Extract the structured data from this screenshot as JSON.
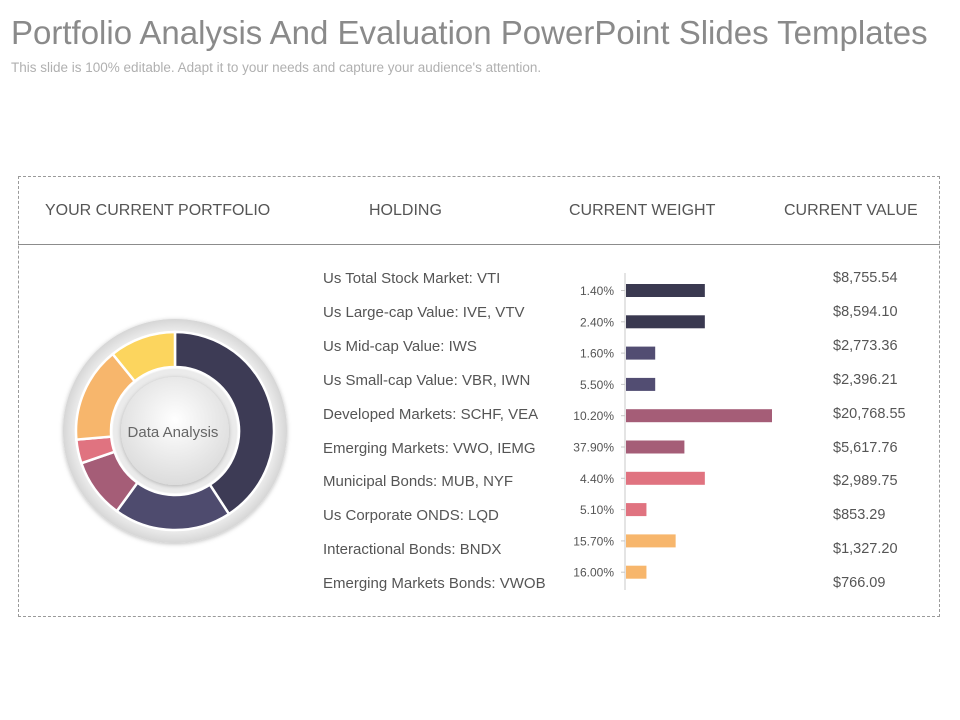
{
  "title": "Portfolio Analysis And Evaluation PowerPoint Slides Templates",
  "subtitle": "This slide is 100% editable. Adapt it to your needs and capture your audience's attention.",
  "table": {
    "headers": {
      "portfolio": "YOUR CURRENT PORTFOLIO",
      "holding": "HOLDING",
      "weight": "CURRENT WEIGHT",
      "value": "CURRENT VALUE"
    }
  },
  "donut": {
    "center_label": "Data Analysis",
    "colors": [
      "#3d3b55",
      "#4e4b6e",
      "#a55d77",
      "#e07380",
      "#f7b66c",
      "#fcd55e"
    ],
    "segments": [
      {
        "fraction": 0.4083
      },
      {
        "fraction": 0.1917
      },
      {
        "fraction": 0.0972
      },
      {
        "fraction": 0.0389
      },
      {
        "fraction": 0.1556
      },
      {
        "fraction": 0.1083
      }
    ]
  },
  "chart_data": {
    "type": "bar",
    "orientation": "horizontal",
    "categories": [
      "Us Total Stock Market: VTI",
      "Us Large-cap Value: IVE, VTV",
      "Us Mid-cap Value: IWS",
      "Us Small-cap Value: VBR, IWN",
      "Developed Markets: SCHF, VEA",
      "Emerging Markets: VWO, IEMG",
      "Municipal Bonds: MUB, NYF",
      "Us Corporate ONDS: LQD",
      "Interactional Bonds: BNDX",
      "Emerging Markets Bonds: VWOB"
    ],
    "weight_labels": [
      "1.40%",
      "2.40%",
      "1.60%",
      "5.50%",
      "10.20%",
      "37.90%",
      "4.40%",
      "5.10%",
      "15.70%",
      "16.00%"
    ],
    "bar_lengths": [
      0.54,
      0.54,
      0.2,
      0.2,
      1.0,
      0.4,
      0.54,
      0.14,
      0.34,
      0.14
    ],
    "bar_colors": [
      "#3a3950",
      "#3a3950",
      "#524d72",
      "#524d72",
      "#a55d77",
      "#a55d77",
      "#e07380",
      "#e07380",
      "#f7b66c",
      "#f7b66c"
    ],
    "values": [
      "$8,755.54",
      "$8,594.10",
      "$2,773.36",
      "$2,396.21",
      "$20,768.55",
      "$5,617.76",
      "$2,989.75",
      "$853.29",
      "$1,327.20",
      "$766.09"
    ]
  }
}
